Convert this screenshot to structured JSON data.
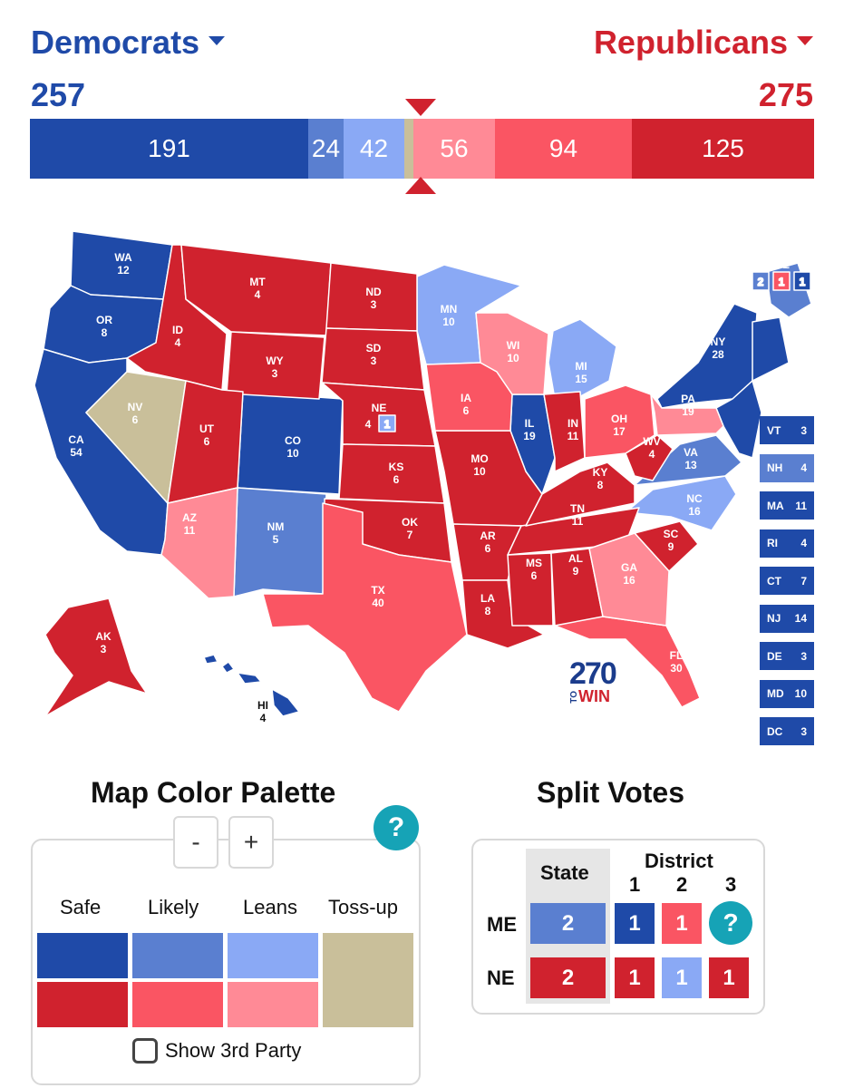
{
  "header": {
    "dem_label": "Democrats",
    "rep_label": "Republicans",
    "dem_total": "257",
    "rep_total": "275"
  },
  "bar": [
    {
      "value": "191",
      "color": "#1f4aa8"
    },
    {
      "value": "24",
      "color": "#5a7fd0"
    },
    {
      "value": "42",
      "color": "#8aa9f5"
    },
    {
      "value": "",
      "color": "#c9bf9a"
    },
    {
      "value": "56",
      "color": "#ff8a96"
    },
    {
      "value": "94",
      "color": "#fa5563"
    },
    {
      "value": "125",
      "color": "#d0222e"
    }
  ],
  "colors": {
    "dem_safe": "#1f4aa8",
    "dem_likely": "#5a7fd0",
    "dem_leans": "#8aa9f5",
    "tossup": "#c9bf9a",
    "rep_safe": "#d0222e",
    "rep_likely": "#fa5563",
    "rep_leans": "#ff8a96",
    "help": "#16a3b6"
  },
  "map": {
    "states": [
      {
        "abbr": "WA",
        "ev": "12"
      },
      {
        "abbr": "OR",
        "ev": "8"
      },
      {
        "abbr": "CA",
        "ev": "54"
      },
      {
        "abbr": "ID",
        "ev": "4"
      },
      {
        "abbr": "NV",
        "ev": "6"
      },
      {
        "abbr": "MT",
        "ev": "4"
      },
      {
        "abbr": "WY",
        "ev": "3"
      },
      {
        "abbr": "UT",
        "ev": "6"
      },
      {
        "abbr": "AZ",
        "ev": "11"
      },
      {
        "abbr": "CO",
        "ev": "10"
      },
      {
        "abbr": "NM",
        "ev": "5"
      },
      {
        "abbr": "ND",
        "ev": "3"
      },
      {
        "abbr": "SD",
        "ev": "3"
      },
      {
        "abbr": "NE",
        "ev": "4"
      },
      {
        "abbr": "KS",
        "ev": "6"
      },
      {
        "abbr": "OK",
        "ev": "7"
      },
      {
        "abbr": "TX",
        "ev": "40"
      },
      {
        "abbr": "MN",
        "ev": "10"
      },
      {
        "abbr": "IA",
        "ev": "6"
      },
      {
        "abbr": "MO",
        "ev": "10"
      },
      {
        "abbr": "AR",
        "ev": "6"
      },
      {
        "abbr": "LA",
        "ev": "8"
      },
      {
        "abbr": "WI",
        "ev": "10"
      },
      {
        "abbr": "IL",
        "ev": "19"
      },
      {
        "abbr": "MI",
        "ev": "15"
      },
      {
        "abbr": "IN",
        "ev": "11"
      },
      {
        "abbr": "OH",
        "ev": "17"
      },
      {
        "abbr": "KY",
        "ev": "8"
      },
      {
        "abbr": "TN",
        "ev": "11"
      },
      {
        "abbr": "MS",
        "ev": "6"
      },
      {
        "abbr": "AL",
        "ev": "9"
      },
      {
        "abbr": "GA",
        "ev": "16"
      },
      {
        "abbr": "FL",
        "ev": "30"
      },
      {
        "abbr": "SC",
        "ev": "9"
      },
      {
        "abbr": "NC",
        "ev": "16"
      },
      {
        "abbr": "VA",
        "ev": "13"
      },
      {
        "abbr": "WV",
        "ev": "4"
      },
      {
        "abbr": "PA",
        "ev": "19"
      },
      {
        "abbr": "NY",
        "ev": "28"
      },
      {
        "abbr": "ME",
        "ev": ""
      },
      {
        "abbr": "AK",
        "ev": "3"
      },
      {
        "abbr": "HI",
        "ev": "4"
      }
    ],
    "ne_district": "1",
    "me_districts": [
      "2",
      "1",
      "1"
    ]
  },
  "small_states": [
    {
      "abbr": "VT",
      "ev": "3"
    },
    {
      "abbr": "NH",
      "ev": "4"
    },
    {
      "abbr": "MA",
      "ev": "11"
    },
    {
      "abbr": "RI",
      "ev": "4"
    },
    {
      "abbr": "CT",
      "ev": "7"
    },
    {
      "abbr": "NJ",
      "ev": "14"
    },
    {
      "abbr": "DE",
      "ev": "3"
    },
    {
      "abbr": "MD",
      "ev": "10"
    },
    {
      "abbr": "DC",
      "ev": "3"
    }
  ],
  "logo": {
    "num": "270",
    "to": "TO",
    "win": "WIN"
  },
  "palette": {
    "title": "Map Color Palette",
    "minus": "-",
    "plus": "+",
    "help": "?",
    "columns": [
      "Safe",
      "Likely",
      "Leans",
      "Toss-up"
    ],
    "third_party_label": "Show 3rd Party"
  },
  "split": {
    "title": "Split Votes",
    "state_header": "State",
    "district_header": "District",
    "district_numbers": [
      "1",
      "2",
      "3"
    ],
    "rows": [
      {
        "state": "ME",
        "state_votes": "2",
        "d1": "1",
        "d2": "1",
        "d3": "?"
      },
      {
        "state": "NE",
        "state_votes": "2",
        "d1": "1",
        "d2": "1",
        "d3": "1"
      }
    ]
  }
}
